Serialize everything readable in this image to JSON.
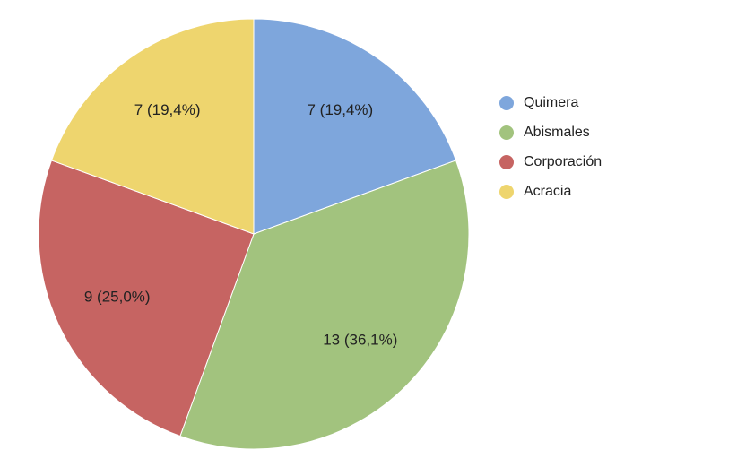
{
  "chart_data": {
    "type": "pie",
    "categories": [
      "Quimera",
      "Abismales",
      "Corporación",
      "Acracia"
    ],
    "values": [
      7,
      13,
      9,
      7
    ],
    "value_labels": [
      "7 (19,4%)",
      "13 (36,1%)",
      "9 (25,0%)",
      "7 (19,4%)"
    ],
    "colors": [
      "#7ea6dc",
      "#a2c37e",
      "#c66462",
      "#eed56e"
    ],
    "legend": "right"
  }
}
